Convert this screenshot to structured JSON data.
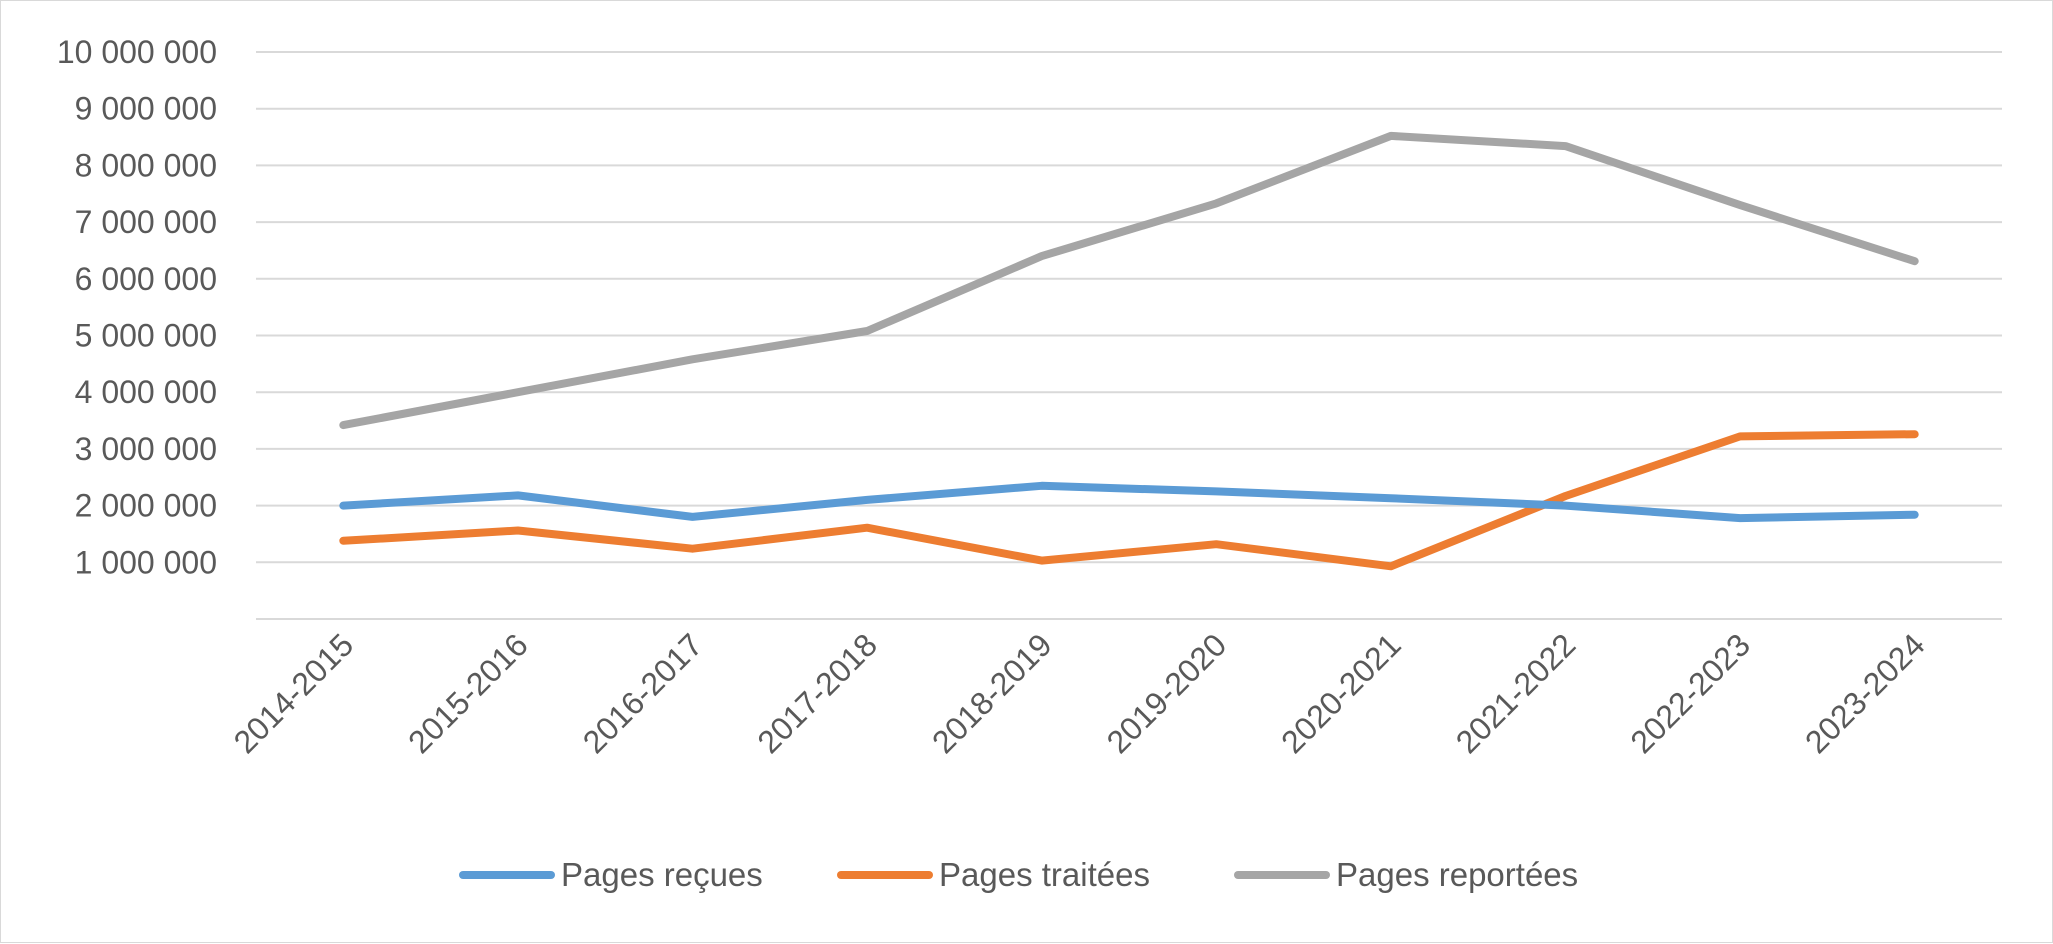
{
  "chart_data": {
    "type": "line",
    "title": "",
    "xlabel": "",
    "ylabel": "",
    "categories": [
      "2014-2015",
      "2015-2016",
      "2016-2017",
      "2017-2018",
      "2018-2019",
      "2019-2020",
      "2020-2021",
      "2021-2022",
      "2022-2023",
      "2023-2024"
    ],
    "y_ticks": [
      {
        "value": 1000000,
        "label": "1 000 000"
      },
      {
        "value": 2000000,
        "label": "2 000 000"
      },
      {
        "value": 3000000,
        "label": "3 000 000"
      },
      {
        "value": 4000000,
        "label": "4 000 000"
      },
      {
        "value": 5000000,
        "label": "5 000 000"
      },
      {
        "value": 6000000,
        "label": "6 000 000"
      },
      {
        "value": 7000000,
        "label": "7 000 000"
      },
      {
        "value": 8000000,
        "label": "8 000 000"
      },
      {
        "value": 9000000,
        "label": "9 000 000"
      },
      {
        "value": 10000000,
        "label": "10 000 000"
      }
    ],
    "ylim": [
      0,
      10000000
    ],
    "grid": true,
    "legend_position": "bottom",
    "series": [
      {
        "name": "Pages reçues",
        "color": "#5b9bd5",
        "values": [
          2000000,
          2180000,
          1800000,
          2100000,
          2350000,
          2250000,
          2130000,
          2000000,
          1780000,
          1840000
        ]
      },
      {
        "name": "Pages traitées",
        "color": "#ed7d31",
        "values": [
          1380000,
          1560000,
          1240000,
          1610000,
          1030000,
          1320000,
          930000,
          2170000,
          3220000,
          3260000
        ]
      },
      {
        "name": "Pages reportées",
        "color": "#a5a5a5",
        "values": [
          3420000,
          4000000,
          4580000,
          5080000,
          6400000,
          7330000,
          8520000,
          8340000,
          7300000,
          6310000
        ]
      }
    ]
  }
}
